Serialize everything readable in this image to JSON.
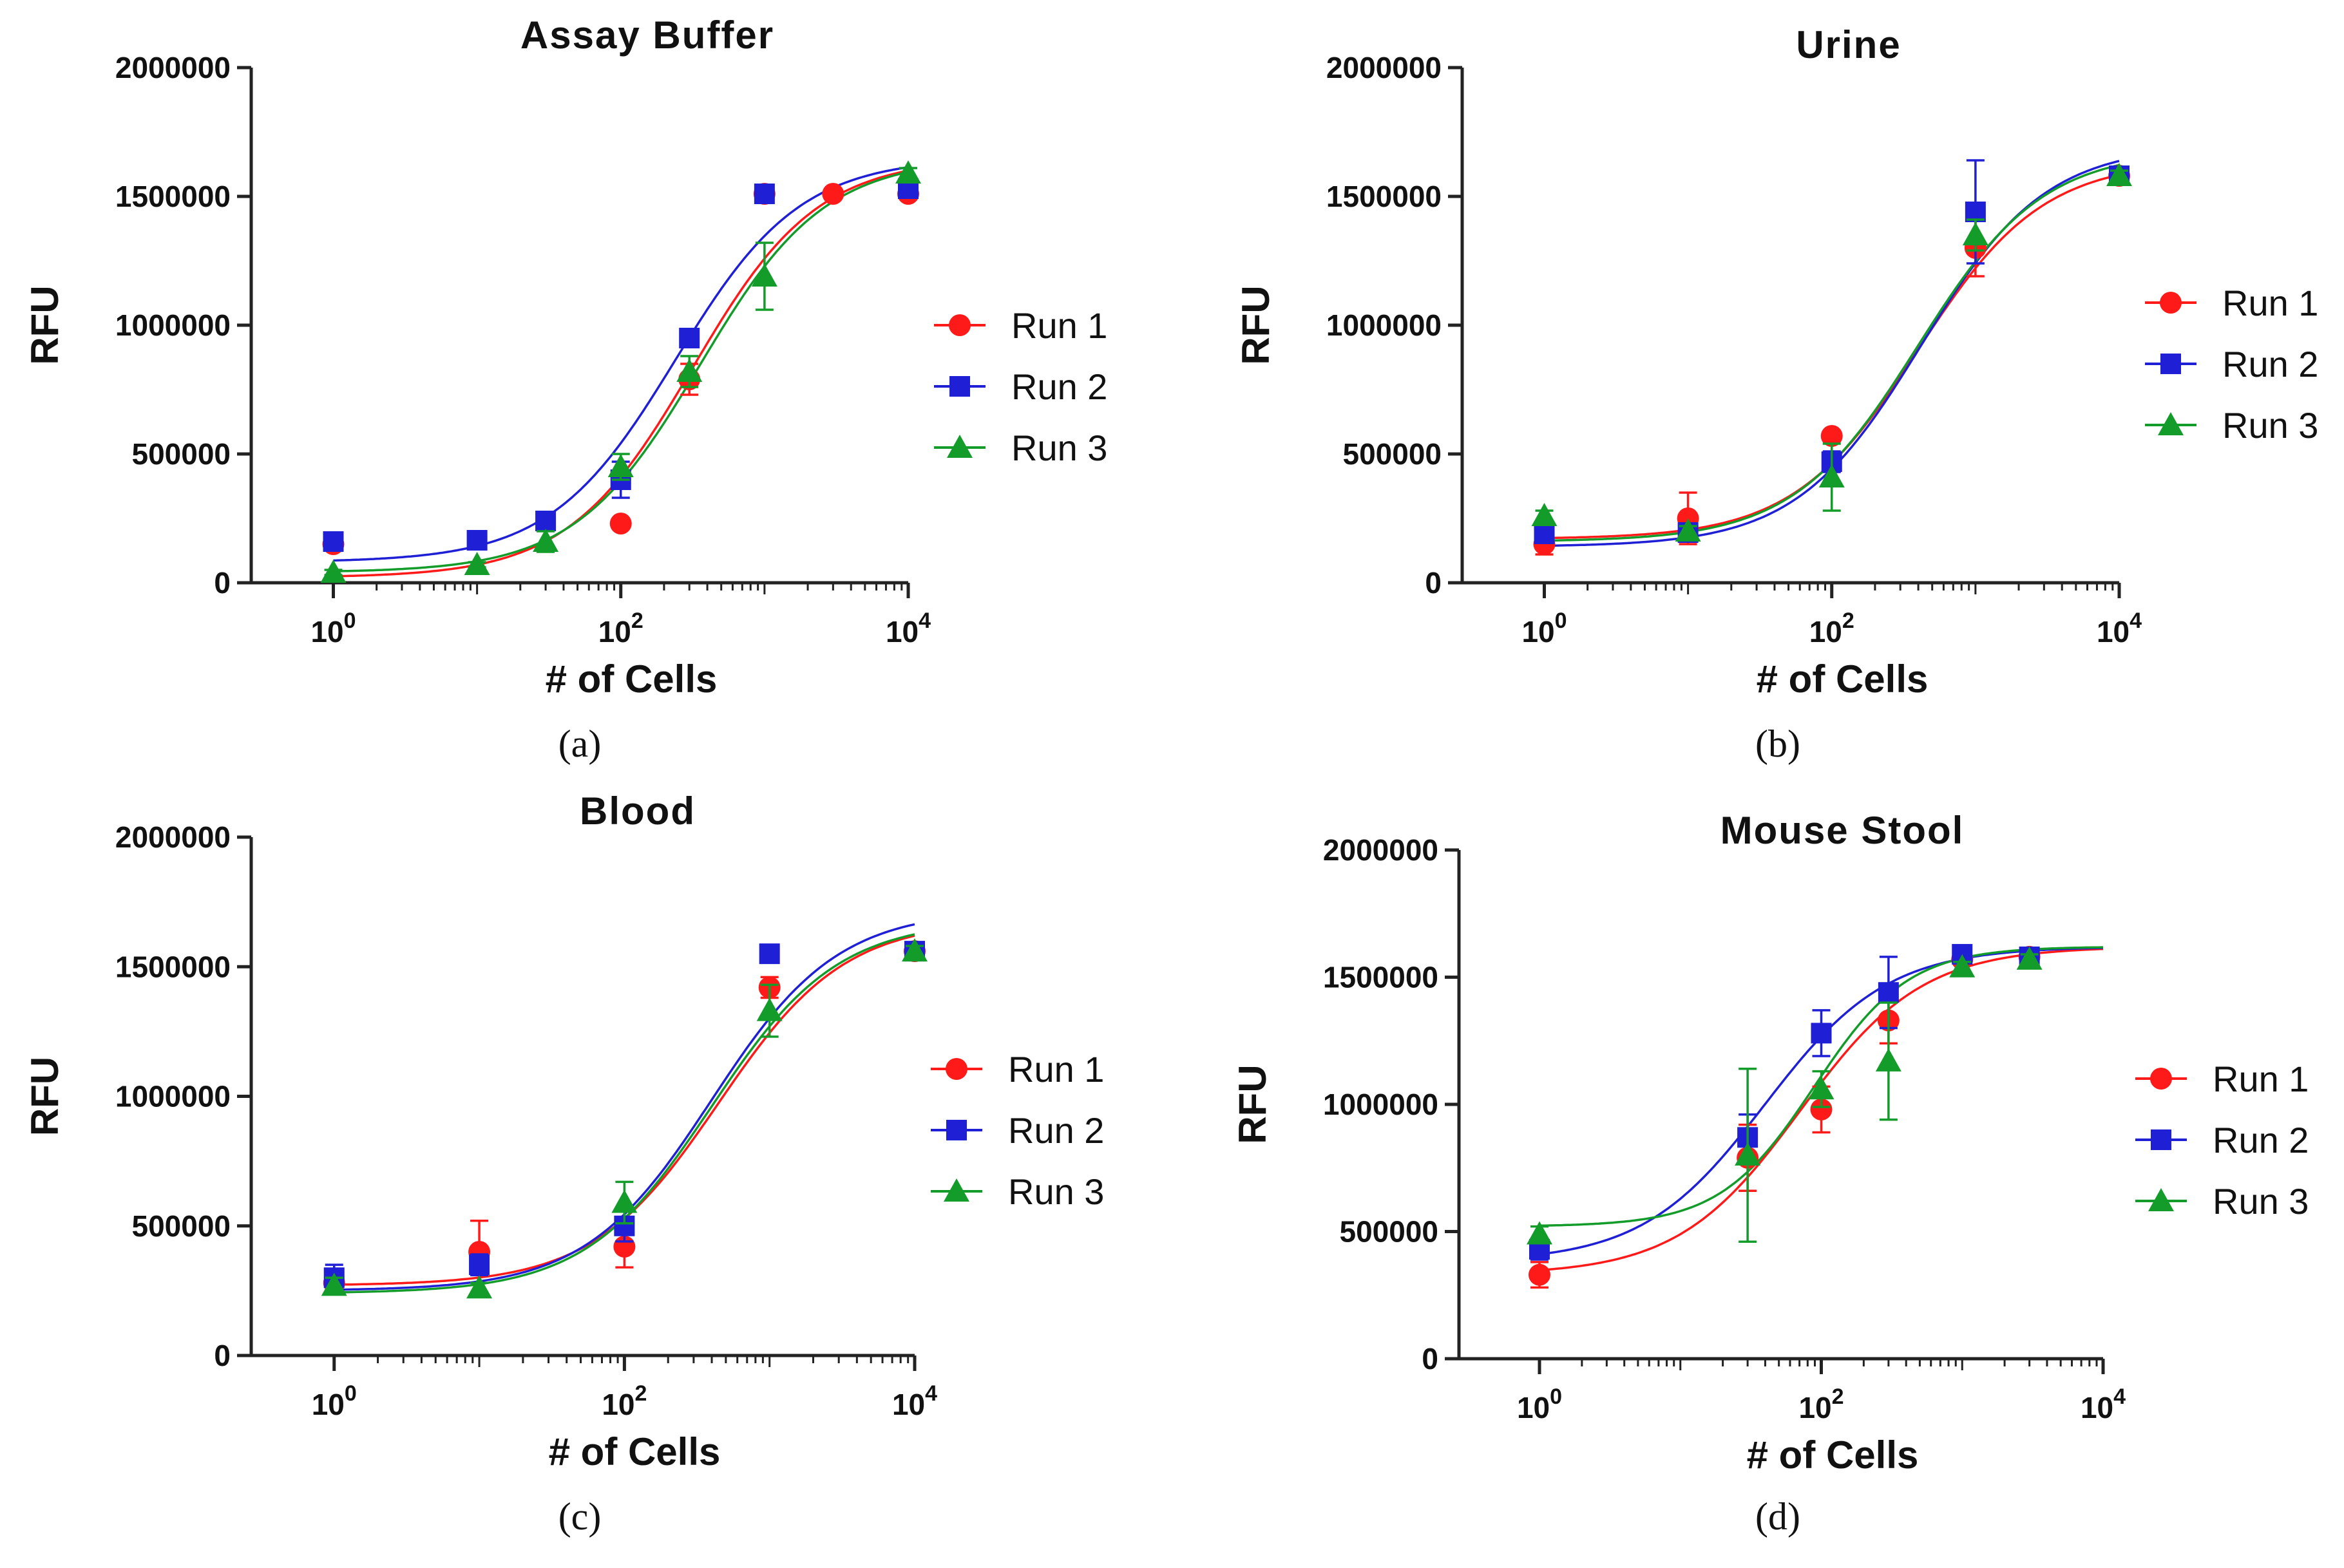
{
  "figure": {
    "series_names": [
      "Run 1",
      "Run 2",
      "Run 3"
    ],
    "colors": {
      "Run 1": "#ff1a1a",
      "Run 2": "#1f1fd6",
      "Run 3": "#139c2a"
    }
  },
  "chart_data": [
    {
      "panel": "a",
      "caption": "(a)",
      "type": "scatter",
      "title": "Assay Buffer",
      "xlabel": "# of Cells",
      "ylabel": "RFU",
      "xscale": "log",
      "xlim": [
        1,
        10000
      ],
      "ylim": [
        0,
        2000000
      ],
      "yticks": [
        0,
        500000,
        1000000,
        1500000,
        2000000
      ],
      "ytick_labels": [
        "0",
        "500000",
        "1000000",
        "1500000",
        "2000000"
      ],
      "xticks": [
        1,
        100,
        10000
      ],
      "xtick_labels": [
        {
          "base": "10",
          "exp": "0"
        },
        {
          "base": "10",
          "exp": "2"
        },
        {
          "base": "10",
          "exp": "4"
        }
      ],
      "legend_position": "right",
      "series": [
        {
          "name": "Run 1",
          "marker": "circle",
          "x": [
            1,
            100,
            300,
            1000,
            3000,
            10000
          ],
          "y": [
            150000,
            230000,
            790000,
            1510000,
            1510000,
            1510000
          ],
          "err": [
            20000,
            15000,
            60000,
            20000,
            15000,
            20000
          ],
          "fit": {
            "bottom": 20000,
            "top": 1650000,
            "log_ec50": 2.5,
            "hill": 1.0
          }
        },
        {
          "name": "Run 2",
          "marker": "square",
          "x": [
            1,
            10,
            30,
            100,
            300,
            1000,
            10000
          ],
          "y": [
            160000,
            165000,
            240000,
            400000,
            950000,
            1510000,
            1530000
          ],
          "err": [
            15000,
            15000,
            20000,
            70000,
            30000,
            20000,
            15000
          ],
          "fit": {
            "bottom": 80000,
            "top": 1650000,
            "log_ec50": 2.38,
            "hill": 1.0
          }
        },
        {
          "name": "Run 3",
          "marker": "triangle",
          "x": [
            1,
            10,
            30,
            100,
            300,
            1000,
            10000
          ],
          "y": [
            40000,
            70000,
            160000,
            450000,
            820000,
            1190000,
            1590000
          ],
          "err": [
            10000,
            10000,
            40000,
            50000,
            60000,
            130000,
            20000
          ],
          "fit": {
            "bottom": 40000,
            "top": 1650000,
            "log_ec50": 2.55,
            "hill": 1.0
          }
        }
      ]
    },
    {
      "panel": "b",
      "caption": "(b)",
      "type": "scatter",
      "title": "Urine",
      "xlabel": "# of Cells",
      "ylabel": "RFU",
      "xscale": "log",
      "xlim": [
        1,
        10000
      ],
      "ylim": [
        0,
        2000000
      ],
      "yticks": [
        0,
        500000,
        1000000,
        1500000,
        2000000
      ],
      "ytick_labels": [
        "0",
        "500000",
        "1000000",
        "1500000",
        "2000000"
      ],
      "xticks": [
        1,
        100,
        10000
      ],
      "xtick_labels": [
        {
          "base": "10",
          "exp": "0"
        },
        {
          "base": "10",
          "exp": "2"
        },
        {
          "base": "10",
          "exp": "4"
        }
      ],
      "legend_position": "right",
      "series": [
        {
          "name": "Run 1",
          "marker": "circle",
          "x": [
            1,
            10,
            100,
            1000,
            10000
          ],
          "y": [
            150000,
            250000,
            570000,
            1300000,
            1580000
          ],
          "err": [
            40000,
            100000,
            20000,
            110000,
            20000
          ],
          "fit": {
            "bottom": 170000,
            "top": 1640000,
            "log_ec50": 2.6,
            "hill": 1.0
          }
        },
        {
          "name": "Run 2",
          "marker": "square",
          "x": [
            1,
            10,
            100,
            1000,
            10000
          ],
          "y": [
            190000,
            195000,
            470000,
            1440000,
            1580000
          ],
          "err": [
            20000,
            20000,
            40000,
            200000,
            20000
          ],
          "fit": {
            "bottom": 140000,
            "top": 1700000,
            "log_ec50": 2.62,
            "hill": 1.0
          }
        },
        {
          "name": "Run 3",
          "marker": "triangle",
          "x": [
            1,
            10,
            100,
            1000,
            10000
          ],
          "y": [
            260000,
            200000,
            410000,
            1350000,
            1580000
          ],
          "err": [
            20000,
            20000,
            130000,
            60000,
            20000
          ],
          "fit": {
            "bottom": 160000,
            "top": 1680000,
            "log_ec50": 2.6,
            "hill": 1.0
          }
        }
      ]
    },
    {
      "panel": "c",
      "caption": "(c)",
      "type": "scatter",
      "title": "Blood",
      "xlabel": "# of Cells",
      "ylabel": "RFU",
      "xscale": "log",
      "xlim": [
        1,
        10000
      ],
      "ylim": [
        0,
        2000000
      ],
      "yticks": [
        0,
        500000,
        1000000,
        1500000,
        2000000
      ],
      "ytick_labels": [
        "0",
        "500000",
        "1000000",
        "1500000",
        "2000000"
      ],
      "xticks": [
        1,
        100,
        10000
      ],
      "xtick_labels": [
        {
          "base": "10",
          "exp": "0"
        },
        {
          "base": "10",
          "exp": "2"
        },
        {
          "base": "10",
          "exp": "4"
        }
      ],
      "legend_position": "right",
      "series": [
        {
          "name": "Run 1",
          "marker": "circle",
          "x": [
            1,
            10,
            100,
            1000,
            10000
          ],
          "y": [
            280000,
            400000,
            420000,
            1420000,
            1560000
          ],
          "err": [
            40000,
            120000,
            80000,
            40000,
            20000
          ],
          "fit": {
            "bottom": 270000,
            "top": 1680000,
            "log_ec50": 2.65,
            "hill": 1.0
          }
        },
        {
          "name": "Run 2",
          "marker": "square",
          "x": [
            1,
            10,
            100,
            1000,
            10000
          ],
          "y": [
            300000,
            350000,
            500000,
            1550000,
            1560000
          ],
          "err": [
            50000,
            40000,
            60000,
            20000,
            20000
          ],
          "fit": {
            "bottom": 250000,
            "top": 1720000,
            "log_ec50": 2.6,
            "hill": 1.0
          }
        },
        {
          "name": "Run 3",
          "marker": "triangle",
          "x": [
            1,
            10,
            100,
            1000,
            10000
          ],
          "y": [
            270000,
            260000,
            590000,
            1330000,
            1560000
          ],
          "err": [
            30000,
            20000,
            80000,
            100000,
            20000
          ],
          "fit": {
            "bottom": 240000,
            "top": 1680000,
            "log_ec50": 2.6,
            "hill": 1.0
          }
        }
      ]
    },
    {
      "panel": "d",
      "caption": "(d)",
      "type": "scatter",
      "title": "Mouse Stool",
      "xlabel": "# of Cells",
      "ylabel": "RFU",
      "xscale": "log",
      "xlim": [
        1,
        10000
      ],
      "ylim": [
        0,
        2000000
      ],
      "yticks": [
        0,
        500000,
        1000000,
        1500000,
        2000000
      ],
      "ytick_labels": [
        "0",
        "500000",
        "1000000",
        "1500000",
        "2000000"
      ],
      "xticks": [
        1,
        100,
        10000
      ],
      "xtick_labels": [
        {
          "base": "10",
          "exp": "0"
        },
        {
          "base": "10",
          "exp": "2"
        },
        {
          "base": "10",
          "exp": "4"
        }
      ],
      "legend_position": "right",
      "series": [
        {
          "name": "Run 1",
          "marker": "circle",
          "x": [
            1,
            30,
            100,
            300,
            1000,
            3000
          ],
          "y": [
            330000,
            790000,
            980000,
            1330000,
            1570000,
            1580000
          ],
          "err": [
            50000,
            130000,
            90000,
            90000,
            20000,
            20000
          ],
          "fit": {
            "bottom": 330000,
            "top": 1620000,
            "log_ec50": 1.85,
            "hill": 1.0
          }
        },
        {
          "name": "Run 2",
          "marker": "square",
          "x": [
            1,
            30,
            100,
            300,
            1000,
            3000
          ],
          "y": [
            430000,
            870000,
            1280000,
            1440000,
            1590000,
            1580000
          ],
          "err": [
            40000,
            90000,
            90000,
            140000,
            20000,
            20000
          ],
          "fit": {
            "bottom": 380000,
            "top": 1620000,
            "log_ec50": 1.6,
            "hill": 1.0
          }
        },
        {
          "name": "Run 3",
          "marker": "triangle",
          "x": [
            1,
            30,
            100,
            300,
            1000,
            3000
          ],
          "y": [
            490000,
            800000,
            1060000,
            1170000,
            1540000,
            1570000
          ],
          "err": [
            30000,
            340000,
            70000,
            230000,
            20000,
            20000
          ],
          "fit": {
            "bottom": 520000,
            "top": 1620000,
            "log_ec50": 1.95,
            "hill": 1.3
          }
        }
      ]
    }
  ]
}
